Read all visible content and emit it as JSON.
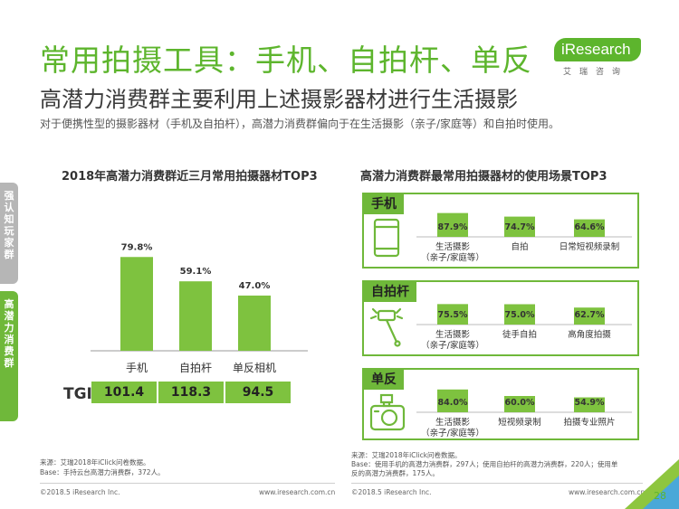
{
  "header": {
    "title": "常用拍摄工具：手机、自拍杆、单反",
    "subtitle": "高潜力消费群主要利用上述摄影器材进行生活摄影",
    "description": "对于便携性型的摄影器材（手机及自拍杆），高潜力消费群偏向于在生活摄影（亲子/家庭等）和自拍时使用。"
  },
  "logo": {
    "brand": "iResearch",
    "sub": "艾瑞咨询"
  },
  "side_tabs": [
    {
      "label": "强认知玩家群"
    },
    {
      "label": "高潜力消费群"
    }
  ],
  "chart_data": [
    {
      "type": "bar",
      "title": "2018年高潜力消费群近三月常用拍摄器材TOP3",
      "categories": [
        "手机",
        "自拍杆",
        "单反相机"
      ],
      "values": [
        79.8,
        59.1,
        47.0
      ],
      "value_labels": [
        "79.8%",
        "59.1%",
        "47.0%"
      ],
      "ylim": [
        0,
        100
      ],
      "color": "#7ec23f",
      "tgi": {
        "label": "TGI",
        "values": [
          "101.4",
          "118.3",
          "94.5"
        ]
      }
    },
    {
      "type": "bar",
      "title": "高潜力消费群最常用拍摄器材的使用场景TOP3",
      "panels": [
        {
          "name": "手机",
          "icon": "phone-icon",
          "categories": [
            [
              "生活摄影",
              "（亲子/家庭等）"
            ],
            [
              "自拍"
            ],
            [
              "日常短视频录制"
            ]
          ],
          "values": [
            87.9,
            74.7,
            64.6
          ],
          "value_labels": [
            "87.9%",
            "74.7%",
            "64.6%"
          ]
        },
        {
          "name": "自拍杆",
          "icon": "selfie-stick-icon",
          "categories": [
            [
              "生活摄影",
              "（亲子/家庭等）"
            ],
            [
              "徒手自拍"
            ],
            [
              "高角度拍摄"
            ]
          ],
          "values": [
            75.5,
            75.0,
            62.7
          ],
          "value_labels": [
            "75.5%",
            "75.0%",
            "62.7%"
          ]
        },
        {
          "name": "单反",
          "icon": "camera-icon",
          "categories": [
            [
              "生活摄影",
              "（亲子/家庭等）"
            ],
            [
              "短视频录制"
            ],
            [
              "拍摄专业照片"
            ]
          ],
          "values": [
            84.0,
            60.0,
            54.9
          ],
          "value_labels": [
            "84.0%",
            "60.0%",
            "54.9%"
          ]
        }
      ],
      "color": "#7ec23f"
    }
  ],
  "footer": {
    "source_left": [
      "来源：艾瑞2018年iClick问卷数据。",
      "Base：手持云台高潜力消费群，372人。"
    ],
    "source_right": [
      "来源：艾瑞2018年iClick问卷数据。",
      "Base：使用手机的高潜力消费群，297人；使用自拍杆的高潜力消费群，220人；使用单",
      "反的高潜力消费群，175人。"
    ],
    "copyright_left": "©2018.5 iResearch Inc.",
    "url_left": "www.iresearch.com.cn",
    "copyright_right": "©2018.5 iResearch Inc.",
    "url_right": "www.iresearch.com.cn",
    "page": "28"
  }
}
